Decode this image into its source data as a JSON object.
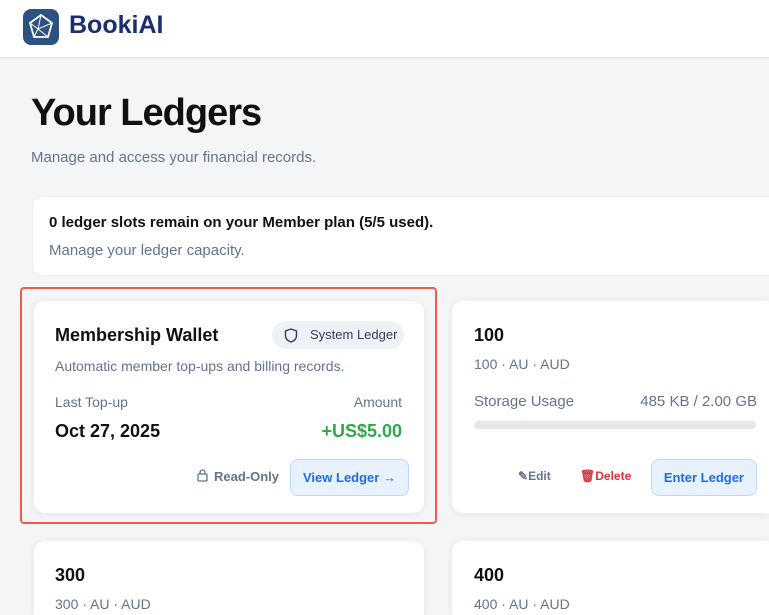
{
  "header": {
    "brand": "BookiAI"
  },
  "page": {
    "title": "Your Ledgers",
    "subtitle": "Manage and access your financial records."
  },
  "notice": {
    "headline": "0 ledger slots remain on your Member plan (5/5 used).",
    "detail": "Manage your ledger capacity."
  },
  "system_card": {
    "title": "Membership Wallet",
    "badge": "System Ledger",
    "description": "Automatic member top-ups and billing records.",
    "last_label": "Last Top-up",
    "last_value": "Oct 27, 2025",
    "amount_label": "Amount",
    "amount_value": "+US$5.00",
    "readonly": "Read-Only",
    "view_button": "View Ledger",
    "amount_color": "#2ea84a"
  },
  "ledgers": [
    {
      "name": "100",
      "meta": "100 · AU · AUD",
      "storage_label": "Storage Usage",
      "storage_value": "485 KB / 2.00 GB",
      "edit": "Edit",
      "delete": "Delete",
      "enter": "Enter Ledger"
    },
    {
      "name": "300",
      "meta": "300 · AU · AUD"
    },
    {
      "name": "400",
      "meta": "400 · AU · AUD"
    }
  ]
}
